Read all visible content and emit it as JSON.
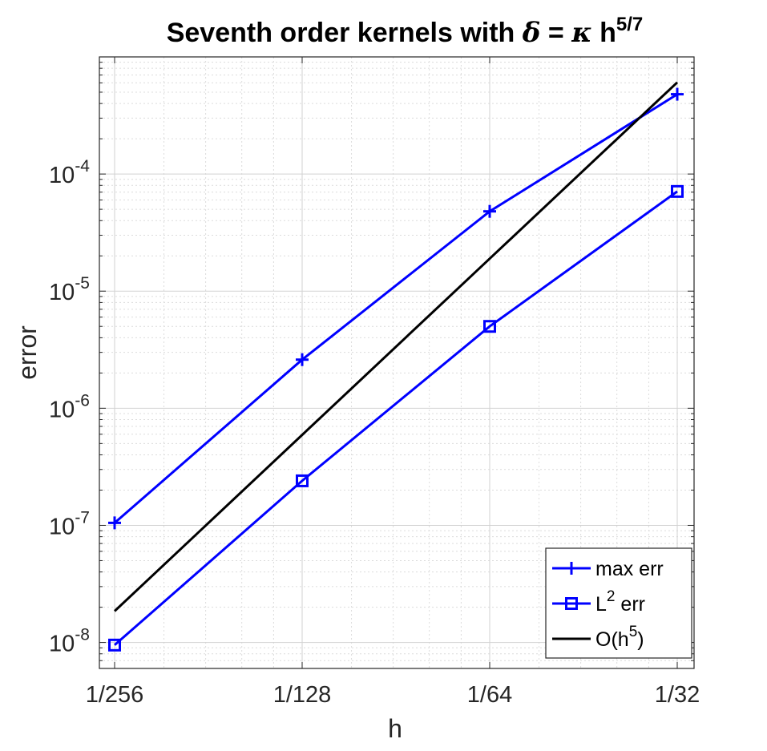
{
  "chart_data": {
    "type": "line",
    "title": {
      "prefix": "Seventh order kernels with ",
      "delta": "δ",
      "eq": " = ",
      "kappa": "κ",
      "h": " h",
      "exponent": "5/7"
    },
    "xlabel": "h",
    "ylabel": "error",
    "x_scale": "log",
    "y_scale": "log",
    "x": [
      0.00390625,
      0.0078125,
      0.015625,
      0.03125
    ],
    "x_tick_labels": [
      "1/256",
      "1/128",
      "1/64",
      "1/32"
    ],
    "xlim": [
      0.00390625,
      0.03125
    ],
    "ylim": [
      6e-09,
      0.001
    ],
    "y_ticks": [
      {
        "value": 1e-08,
        "base": "10",
        "exp": "-8"
      },
      {
        "value": 1e-07,
        "base": "10",
        "exp": "-7"
      },
      {
        "value": 1e-06,
        "base": "10",
        "exp": "-6"
      },
      {
        "value": 1e-05,
        "base": "10",
        "exp": "-5"
      },
      {
        "value": 0.0001,
        "base": "10",
        "exp": "-4"
      }
    ],
    "grid": true,
    "minor_grid": true,
    "legend_position": "bottom-right",
    "series": [
      {
        "name_base": "max err",
        "name_sup": "",
        "name_tail": "",
        "color": "#0000ff",
        "marker": "plus",
        "values": [
          1.05e-07,
          2.6e-06,
          4.8e-05,
          0.00048
        ]
      },
      {
        "name_base": "L",
        "name_sup": "2",
        "name_tail": " err",
        "color": "#0000ff",
        "marker": "square",
        "values": [
          9.5e-09,
          2.4e-07,
          5e-06,
          7.1e-05
        ]
      },
      {
        "name_base": "O(h",
        "name_sup": "5",
        "name_tail": ")",
        "color": "#000000",
        "marker": "none",
        "values": [
          1.85e-08,
          5.92e-07,
          1.894e-05,
          0.000606
        ]
      }
    ]
  }
}
